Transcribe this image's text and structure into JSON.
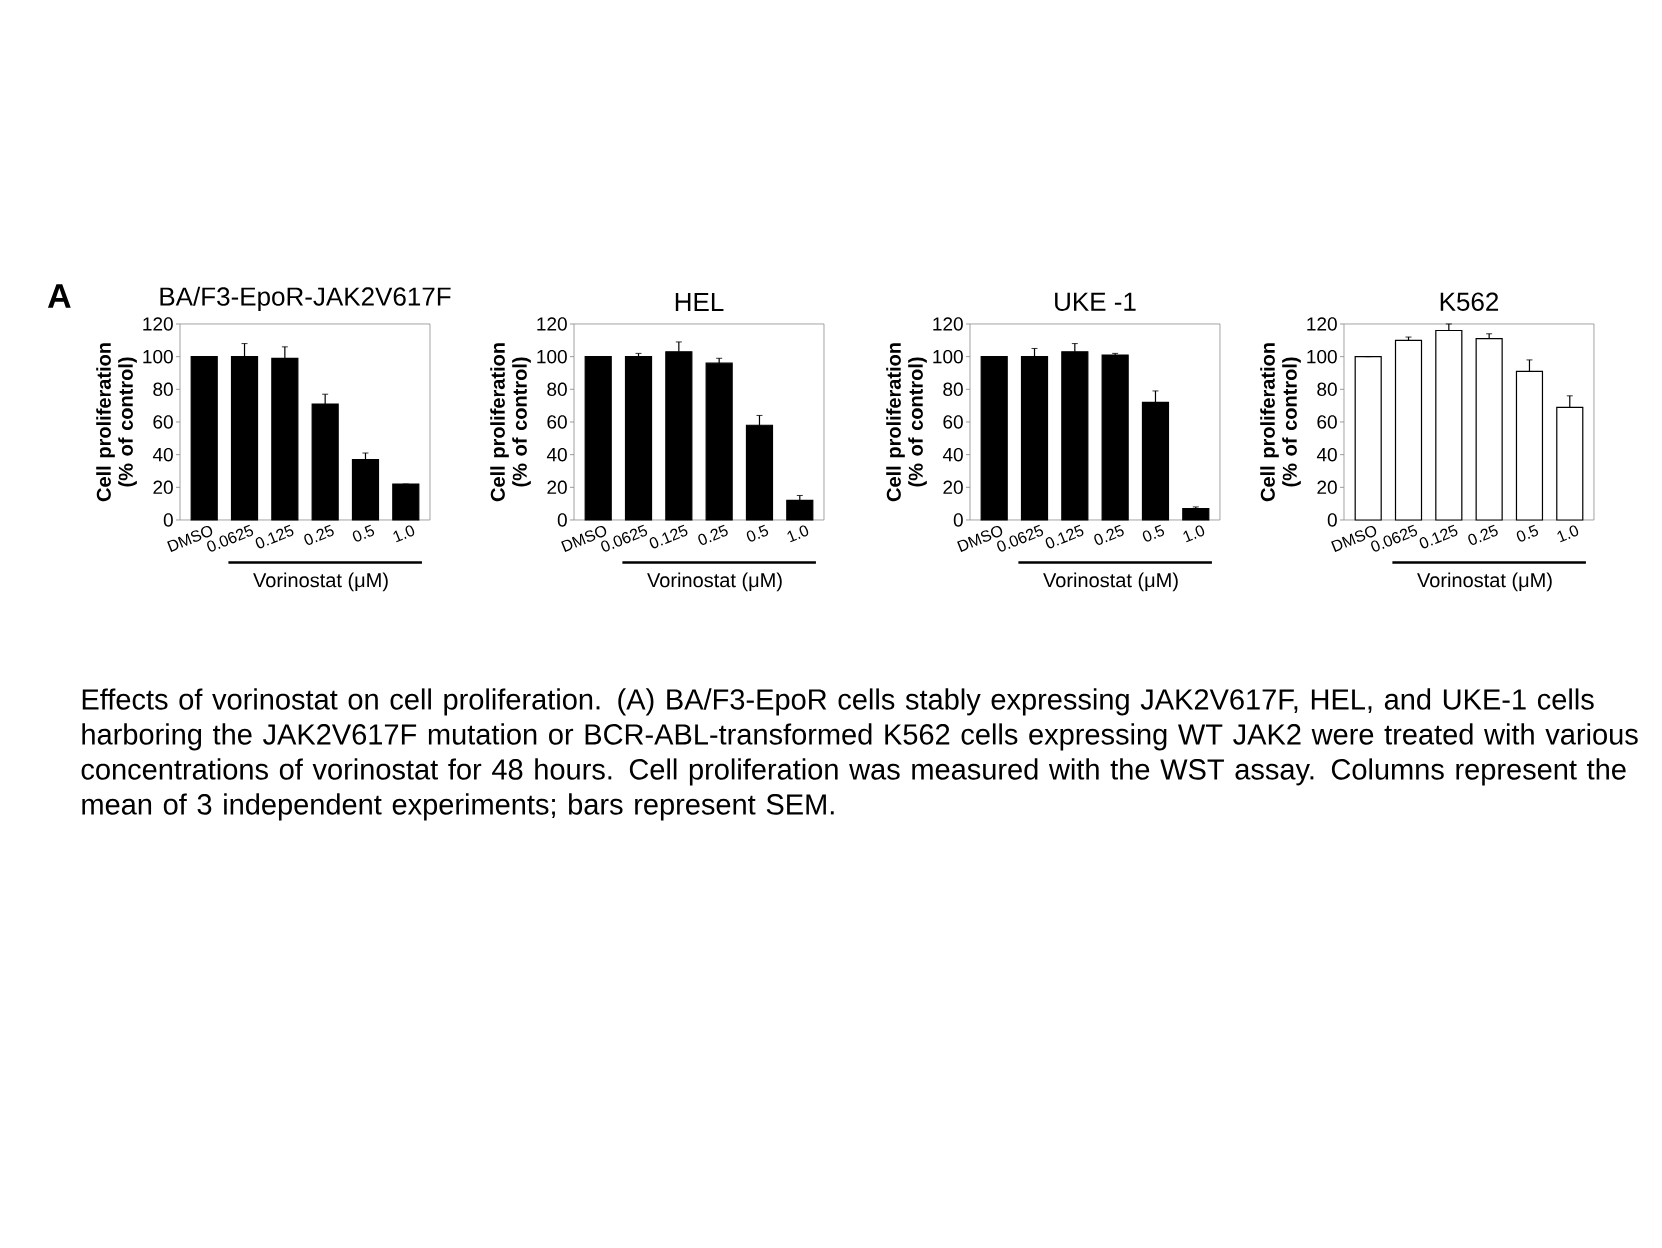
{
  "chart_data": [
    {
      "type": "bar",
      "title": "BA/F3-EpoR-JAK2V617F",
      "categories": [
        "DMSO",
        "0.0625",
        "0.125",
        "0.25",
        "0.5",
        "1.0"
      ],
      "values": [
        100,
        100,
        99,
        71,
        37,
        22
      ],
      "errors": [
        null,
        [
          100,
          108
        ],
        [
          99,
          106
        ],
        [
          71,
          77
        ],
        [
          37,
          41
        ],
        null
      ],
      "color": "#000000",
      "xlabel": "Vorinostat (μM)",
      "ylabel": "Cell proliferation (% of control)",
      "ylim": [
        0,
        120
      ],
      "yticks": [
        0,
        20,
        40,
        60,
        80,
        100,
        120
      ],
      "annotations": [
        "A",
        "Effects of vorinostat on cell proliferation. (A) BA/F3-EpoR cells stably expressing JAK2V617F, HEL, and UKE-1 cells harboring the JAK2V617F mutation or BCR-ABL-transformed K562 cells expressing WT JAK2 were treated with various concentrations of vorinostat for 48 hours. Cell proliferation was measured with the WST assay. Columns represent the mean of 3 independent experiments; bars represent SEM."
      ]
    },
    {
      "type": "bar",
      "title": "HEL",
      "categories": [
        "DMSO",
        "0.0625",
        "0.125",
        "0.25",
        "0.5",
        "1.0"
      ],
      "values": [
        100,
        100,
        103,
        96,
        58,
        12
      ],
      "errors": [
        null,
        [
          100,
          102
        ],
        [
          103,
          109
        ],
        [
          96,
          99
        ],
        [
          58,
          64
        ],
        [
          12,
          15
        ]
      ],
      "color": "#000000",
      "xlabel": "Vorinostat (μM)",
      "ylabel": "Cell proliferation (% of control)",
      "ylim": [
        0,
        120
      ],
      "yticks": [
        0,
        20,
        40,
        60,
        80,
        100,
        120
      ]
    },
    {
      "type": "bar",
      "title": "UKE -1",
      "categories": [
        "DMSO",
        "0.0625",
        "0.125",
        "0.25",
        "0.5",
        "1.0"
      ],
      "values": [
        100,
        100,
        103,
        101,
        72,
        7
      ],
      "errors": [
        null,
        [
          100,
          105
        ],
        [
          103,
          108
        ],
        [
          101,
          102
        ],
        [
          72,
          79
        ],
        [
          7,
          8
        ]
      ],
      "color": "#000000",
      "xlabel": "Vorinostat (μM)",
      "ylabel": "Cell proliferation (% of control)",
      "ylim": [
        0,
        120
      ],
      "yticks": [
        0,
        20,
        40,
        60,
        80,
        100,
        120
      ]
    },
    {
      "type": "bar",
      "title": "K562",
      "categories": [
        "DMSO",
        "0.0625",
        "0.125",
        "0.25",
        "0.5",
        "1.0"
      ],
      "values": [
        100,
        110,
        116,
        111,
        91,
        69
      ],
      "errors": [
        null,
        [
          110,
          112
        ],
        [
          116,
          120
        ],
        [
          111,
          114
        ],
        [
          91,
          98
        ],
        [
          69,
          76
        ]
      ],
      "color": "#ffffff",
      "xlabel": "Vorinostat (μM)",
      "ylabel": "Cell proliferation (% of control)",
      "ylim": [
        0,
        120
      ],
      "yticks": [
        0,
        20,
        40,
        60,
        80,
        100,
        120
      ]
    }
  ]
}
